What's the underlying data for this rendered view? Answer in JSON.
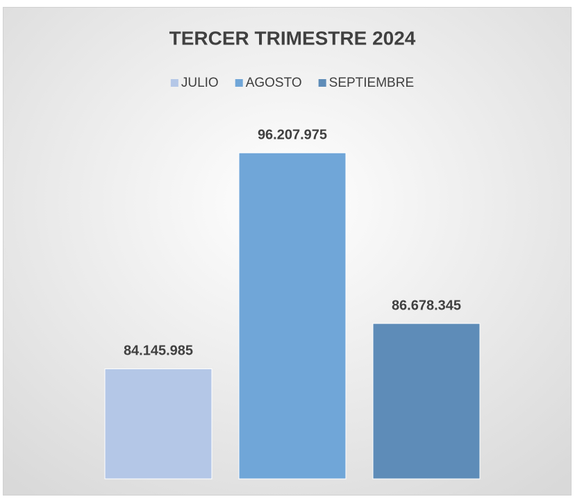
{
  "chart_data": {
    "type": "bar",
    "title": "TERCER TRIMESTRE 2024",
    "categories": [
      null
    ],
    "series": [
      {
        "name": "JULIO",
        "color": "#b4c7e7",
        "values": [
          84145985
        ],
        "value_labels": [
          "84.145.985"
        ]
      },
      {
        "name": "AGOSTO",
        "color": "#70a6d8",
        "values": [
          96207975
        ],
        "value_labels": [
          "96.207.975"
        ]
      },
      {
        "name": "SEPTIEMBRE",
        "color": "#5e8cb8",
        "values": [
          86678345
        ],
        "value_labels": [
          "86.678.345"
        ]
      }
    ],
    "ylim": [
      78000000,
      98000000
    ],
    "legend": "top"
  }
}
